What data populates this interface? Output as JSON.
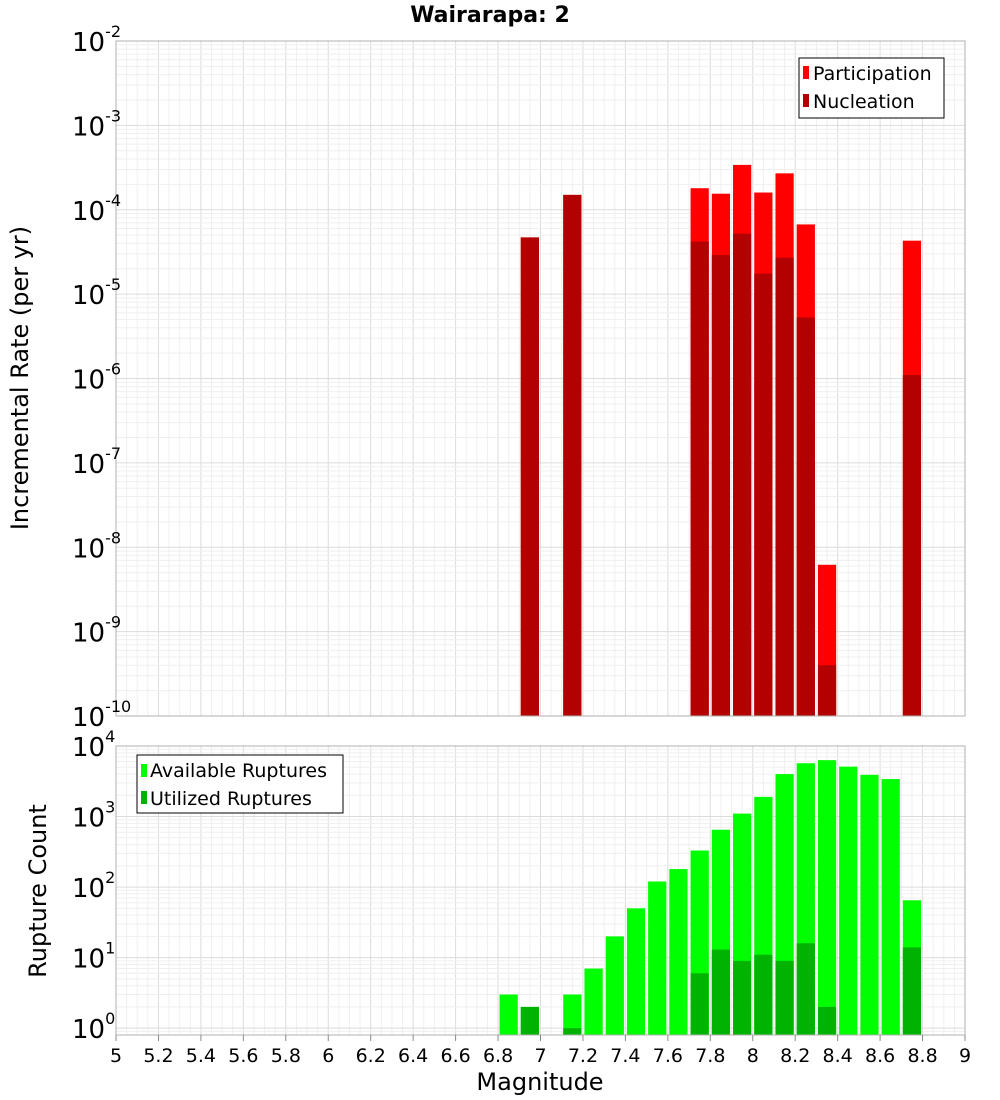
{
  "title": "Wairarapa: 2",
  "colors": {
    "participation": "#ff0000",
    "nucleation": "#b30000",
    "available": "#00ff00",
    "utilized": "#00b300"
  },
  "chart_data": [
    {
      "type": "bar",
      "panel": "rate",
      "ylabel": "Incremental Rate (per yr)",
      "yscale": "log",
      "ylim": [
        1e-10,
        0.01
      ],
      "xlim": [
        5,
        9
      ],
      "legend_position": "top-right",
      "ytick_exponents": [
        "-2",
        "-3",
        "-4",
        "-5",
        "-6",
        "-7",
        "-8",
        "-9",
        "-10"
      ],
      "series": [
        {
          "name": "Participation",
          "x": [
            6.95,
            7.15,
            7.75,
            7.85,
            7.95,
            8.05,
            8.15,
            8.25,
            8.35,
            8.75
          ],
          "values": [
            4.7e-05,
            0.00015,
            0.00018,
            0.000155,
            0.00034,
            0.00016,
            0.00027,
            6.7e-05,
            6.2e-09,
            4.3e-05
          ]
        },
        {
          "name": "Nucleation",
          "x": [
            6.95,
            7.15,
            7.75,
            7.85,
            7.95,
            8.05,
            8.15,
            8.25,
            8.35,
            8.75
          ],
          "values": [
            4.7e-05,
            0.00015,
            4.2e-05,
            2.9e-05,
            5.2e-05,
            1.75e-05,
            2.7e-05,
            5.3e-06,
            4e-10,
            1.1e-06
          ]
        }
      ]
    },
    {
      "type": "bar",
      "panel": "count",
      "ylabel": "Rupture Count",
      "xlabel": "Magnitude",
      "yscale": "log",
      "ylim": [
        0.8,
        10000
      ],
      "xlim": [
        5,
        9
      ],
      "legend_position": "top-left",
      "ytick_exponents": [
        "4",
        "3",
        "2",
        "1",
        "0"
      ],
      "xticks": [
        "5",
        "5.2",
        "5.4",
        "5.6",
        "5.8",
        "6",
        "6.2",
        "6.4",
        "6.6",
        "6.8",
        "7",
        "7.2",
        "7.4",
        "7.6",
        "7.8",
        "8",
        "8.2",
        "8.4",
        "8.6",
        "8.8",
        "9"
      ],
      "series": [
        {
          "name": "Available Ruptures",
          "x": [
            6.85,
            6.95,
            7.15,
            7.25,
            7.35,
            7.45,
            7.55,
            7.65,
            7.75,
            7.85,
            7.95,
            8.05,
            8.15,
            8.25,
            8.35,
            8.45,
            8.55,
            8.65,
            8.75
          ],
          "values": [
            3,
            2,
            3,
            7,
            20,
            50,
            120,
            180,
            330,
            650,
            1100,
            1900,
            4000,
            5700,
            6300,
            5100,
            3900,
            3400,
            65
          ]
        },
        {
          "name": "Utilized Ruptures",
          "x": [
            6.95,
            7.15,
            7.75,
            7.85,
            7.95,
            8.05,
            8.15,
            8.25,
            8.35,
            8.75
          ],
          "values": [
            2,
            1,
            6,
            13,
            9,
            11,
            9,
            16,
            2,
            14
          ]
        }
      ]
    }
  ]
}
